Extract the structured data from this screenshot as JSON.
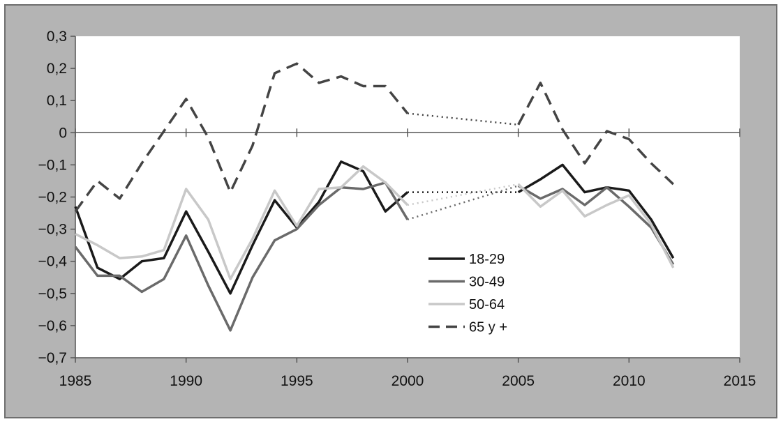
{
  "chart_data": {
    "type": "line",
    "title": "",
    "xlabel": "",
    "ylabel": "",
    "xlim": [
      1985,
      2015
    ],
    "ylim": [
      -0.7,
      0.3
    ],
    "x_ticks": [
      "1985",
      "1990",
      "1995",
      "2000",
      "2005",
      "2010",
      "2015"
    ],
    "y_ticks": [
      "0,3",
      "0,2",
      "0,1",
      "0",
      "−0,1",
      "−0,2",
      "−0,3",
      "−0,4",
      "−0,5",
      "−0,6",
      "−0,7"
    ],
    "legend_position": "center-right",
    "gap_note": "values between 2000 and 2005 are joined by dotted lines",
    "series": [
      {
        "name": "18-29",
        "color": "#1a1a1a",
        "style": "solid",
        "x": [
          1985,
          1986,
          1987,
          1988,
          1989,
          1990,
          1991,
          1992,
          1993,
          1994,
          1995,
          1996,
          1997,
          1998,
          1999,
          2000,
          2005,
          2006,
          2007,
          2008,
          2009,
          2010,
          2011,
          2012
        ],
        "y": [
          -0.23,
          -0.42,
          -0.455,
          -0.4,
          -0.39,
          -0.245,
          -0.37,
          -0.5,
          -0.35,
          -0.21,
          -0.295,
          -0.215,
          -0.09,
          -0.12,
          -0.245,
          -0.185,
          -0.185,
          -0.145,
          -0.1,
          -0.185,
          -0.17,
          -0.18,
          -0.27,
          -0.39
        ]
      },
      {
        "name": "30-49",
        "color": "#6a6a6a",
        "style": "solid",
        "x": [
          1985,
          1986,
          1987,
          1988,
          1989,
          1990,
          1991,
          1992,
          1993,
          1994,
          1995,
          1996,
          1997,
          1998,
          1999,
          2000,
          2005,
          2006,
          2007,
          2008,
          2009,
          2010,
          2011,
          2012
        ],
        "y": [
          -0.355,
          -0.445,
          -0.445,
          -0.495,
          -0.455,
          -0.32,
          -0.475,
          -0.615,
          -0.45,
          -0.335,
          -0.3,
          -0.225,
          -0.17,
          -0.175,
          -0.155,
          -0.27,
          -0.165,
          -0.205,
          -0.175,
          -0.225,
          -0.17,
          -0.23,
          -0.295,
          -0.41
        ]
      },
      {
        "name": "50-64",
        "color": "#c8c8c8",
        "style": "solid",
        "x": [
          1985,
          1986,
          1987,
          1988,
          1989,
          1990,
          1991,
          1992,
          1993,
          1994,
          1995,
          1996,
          1997,
          1998,
          1999,
          2000,
          2005,
          2006,
          2007,
          2008,
          2009,
          2010,
          2011,
          2012
        ],
        "y": [
          -0.315,
          -0.35,
          -0.39,
          -0.385,
          -0.365,
          -0.175,
          -0.27,
          -0.455,
          -0.33,
          -0.18,
          -0.29,
          -0.175,
          -0.17,
          -0.105,
          -0.155,
          -0.225,
          -0.16,
          -0.23,
          -0.18,
          -0.26,
          -0.225,
          -0.195,
          -0.285,
          -0.42
        ]
      },
      {
        "name": "65 y +",
        "color": "#444444",
        "style": "dashed",
        "x": [
          1985,
          1986,
          1987,
          1988,
          1989,
          1990,
          1991,
          1992,
          1993,
          1994,
          1995,
          1996,
          1997,
          1998,
          1999,
          2000,
          2005,
          2006,
          2007,
          2008,
          2009,
          2010,
          2011,
          2012
        ],
        "y": [
          -0.245,
          -0.15,
          -0.205,
          -0.095,
          0.005,
          0.105,
          -0.015,
          -0.185,
          -0.04,
          0.185,
          0.215,
          0.155,
          0.175,
          0.145,
          0.145,
          0.06,
          0.025,
          0.155,
          0.01,
          -0.095,
          0.005,
          -0.02,
          -0.095,
          -0.16
        ]
      }
    ]
  }
}
